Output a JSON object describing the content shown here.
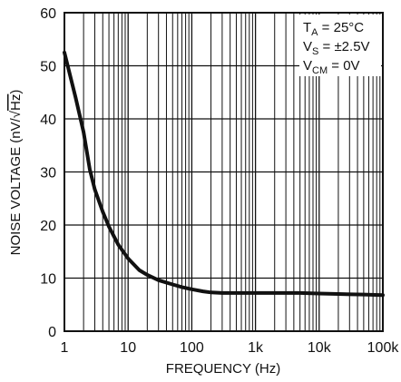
{
  "chart_data": {
    "type": "line",
    "x_scale": "log",
    "xlim": [
      1,
      100000
    ],
    "ylim": [
      0,
      60
    ],
    "grid": true,
    "xlabel": "FREQUENCY (Hz)",
    "ylabel": {
      "main": "NOISE VOLTAGE (nV/",
      "radical": "√",
      "radicand": "Hz",
      "close": ")"
    },
    "xticks": [
      1,
      10,
      100,
      1000,
      10000,
      100000
    ],
    "xtick_labels": [
      "1",
      "10",
      "100",
      "1k",
      "10k",
      "100k"
    ],
    "yticks": [
      0,
      10,
      20,
      30,
      40,
      50,
      60
    ],
    "ytick_labels": [
      "0",
      "10",
      "20",
      "30",
      "40",
      "50",
      "60"
    ],
    "annotations": [
      {
        "main": "T",
        "sub": "A",
        "rest": " = 25°C"
      },
      {
        "main": "V",
        "sub": "S",
        "rest": " = ±2.5V"
      },
      {
        "main": "V",
        "sub": "CM",
        "rest": " = 0V"
      }
    ],
    "series": [
      {
        "x": [
          1,
          1.5,
          2,
          2.5,
          3,
          4,
          5,
          7,
          10,
          15,
          20,
          30,
          50,
          70,
          100,
          150,
          200,
          300,
          500,
          1000,
          2000,
          5000,
          10000,
          20000,
          50000,
          100000
        ],
        "y": [
          52.5,
          44,
          37.5,
          30.5,
          26.7,
          22.5,
          19.7,
          16.3,
          13.7,
          11.5,
          10.6,
          9.6,
          8.8,
          8.3,
          7.9,
          7.5,
          7.3,
          7.2,
          7.2,
          7.2,
          7.2,
          7.2,
          7.1,
          7.0,
          6.9,
          6.8
        ]
      }
    ]
  }
}
